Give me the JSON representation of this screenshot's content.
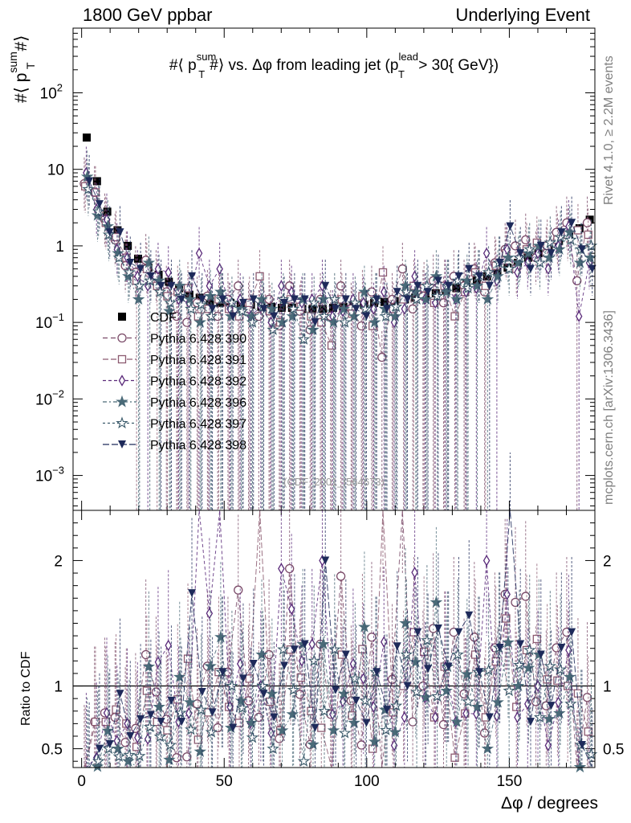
{
  "header": {
    "left": "1800 GeV ppbar",
    "right": "Underlying Event"
  },
  "side_labels": {
    "rivet": "Rivet 4.1.0, ≥ 2.2M events",
    "mcplots": "mcplots.cern.ch [arXiv:1306.3436]"
  },
  "chart_data": {
    "type": "scatter",
    "title": "#⟨ p_T^sum #⟩ vs. Δφ from leading jet  (p_T^lead > 30{ GeV})",
    "title_parts": {
      "prefix": "#⟨ p",
      "sup1": "sum",
      "sub1": "T",
      "mid": "#⟩ vs. Δφ from leading jet  (p",
      "sup2": "lead",
      "sub2": "T",
      "suffix": " > 30{ GeV})"
    },
    "ylabel": {
      "prefix": "#⟨ p",
      "sup": "sum",
      "sub": "T",
      "suffix": "#⟩"
    },
    "xlabel": "Δφ / degrees",
    "ratio_ylabel": "Ratio to CDF",
    "watermark": "(CDF_2001_I564673)",
    "xlim": [
      -3,
      180
    ],
    "ylim": [
      0.00035,
      700
    ],
    "yscale": "log",
    "ratio_ylim": [
      0.35,
      2.4
    ],
    "x_ticks": [
      "0",
      "50",
      "100",
      "150"
    ],
    "x_tick_values": [
      0,
      50,
      100,
      150
    ],
    "y_tick_labels": [
      {
        "value": 100,
        "base": "10",
        "exp": "2"
      },
      {
        "value": 10,
        "base": "10",
        "exp": ""
      },
      {
        "value": 1,
        "base": "1",
        "exp": ""
      },
      {
        "value": 0.1,
        "base": "10",
        "exp": "−1"
      },
      {
        "value": 0.01,
        "base": "10",
        "exp": "−2"
      },
      {
        "value": 0.001,
        "base": "10",
        "exp": "−3"
      }
    ],
    "ratio_ticks": [
      "2",
      "1",
      "0.5"
    ],
    "ratio_tick_values": [
      2,
      1,
      0.5
    ],
    "x": [
      1.8,
      5.4,
      9.0,
      12.6,
      16.2,
      19.8,
      23.4,
      27.0,
      30.6,
      34.2,
      37.8,
      41.4,
      45.0,
      48.6,
      52.2,
      55.8,
      59.4,
      63.0,
      66.6,
      70.2,
      73.8,
      77.4,
      81.0,
      84.6,
      88.2,
      91.8,
      95.4,
      99.0,
      102.6,
      106.2,
      109.8,
      113.4,
      117.0,
      120.6,
      124.2,
      127.8,
      131.4,
      135.0,
      138.6,
      142.2,
      145.8,
      149.4,
      153.0,
      156.6,
      160.2,
      163.8,
      167.4,
      171.0,
      174.6,
      178.2
    ],
    "series": [
      {
        "name": "CDF",
        "marker": "square-filled",
        "color": "#000000",
        "values": [
          26,
          7.0,
          2.8,
          1.6,
          1.0,
          0.68,
          0.52,
          0.42,
          0.34,
          0.28,
          0.23,
          0.21,
          0.19,
          0.18,
          0.18,
          0.17,
          0.17,
          0.16,
          0.16,
          0.155,
          0.155,
          0.15,
          0.15,
          0.15,
          0.155,
          0.16,
          0.17,
          0.17,
          0.18,
          0.185,
          0.19,
          0.2,
          0.21,
          0.22,
          0.24,
          0.26,
          0.28,
          0.32,
          0.36,
          0.4,
          0.46,
          0.52,
          0.6,
          0.7,
          0.8,
          0.95,
          1.15,
          1.4,
          1.7,
          2.2
        ]
      },
      {
        "name": "Pythia 6.428 390",
        "marker": "circle-open",
        "color": "#7a4a68",
        "values": [
          6.5,
          5.0,
          2.2,
          1.2,
          0.55,
          0.45,
          0.65,
          0.4,
          0.25,
          0.12,
          0.1,
          0.18,
          0.22,
          0.12,
          0.2,
          0.3,
          0.15,
          0.12,
          0.2,
          0.09,
          0.3,
          0.14,
          0.08,
          0.2,
          0.12,
          0.3,
          0.15,
          0.09,
          0.25,
          0.035,
          0.2,
          0.5,
          0.15,
          0.22,
          0.35,
          0.18,
          0.4,
          0.3,
          0.5,
          0.25,
          0.6,
          0.9,
          1.0,
          1.2,
          0.7,
          0.8,
          1.5,
          2.0,
          0.35,
          2.0
        ]
      },
      {
        "name": "Pythia 6.428 391",
        "marker": "square-open",
        "color": "#8c5a70",
        "values": [
          6.0,
          5.0,
          2.0,
          1.3,
          0.7,
          0.35,
          0.5,
          0.3,
          0.22,
          0.25,
          0.28,
          0.12,
          0.15,
          0.2,
          0.15,
          0.12,
          0.18,
          0.4,
          0.14,
          0.1,
          0.2,
          0.16,
          0.12,
          0.1,
          0.05,
          0.2,
          0.13,
          0.22,
          0.09,
          0.45,
          0.15,
          0.2,
          0.3,
          0.28,
          0.18,
          0.3,
          0.12,
          0.25,
          0.45,
          0.3,
          0.55,
          0.8,
          0.5,
          0.9,
          1.1,
          1.0,
          1.2,
          1.4,
          1.6,
          1.4
        ]
      },
      {
        "name": "Pythia 6.428 392",
        "marker": "diamond-open",
        "color": "#5a2a7a",
        "values": [
          9.0,
          3.0,
          2.2,
          0.9,
          0.7,
          0.4,
          0.3,
          0.5,
          0.45,
          0.2,
          0.18,
          0.8,
          0.3,
          0.5,
          0.15,
          0.2,
          0.12,
          0.16,
          0.1,
          0.3,
          0.25,
          0.18,
          0.2,
          0.3,
          0.12,
          0.14,
          0.2,
          0.18,
          0.15,
          0.25,
          0.1,
          0.15,
          0.4,
          0.2,
          0.18,
          0.3,
          0.2,
          0.25,
          0.28,
          0.8,
          0.35,
          0.9,
          0.45,
          0.6,
          0.8,
          0.5,
          1.0,
          1.8,
          0.12,
          0.6
        ]
      },
      {
        "name": "Pythia 6.428 396",
        "marker": "star-filled",
        "color": "#4a6a78",
        "values": [
          8.0,
          2.5,
          1.8,
          0.8,
          0.4,
          0.2,
          0.6,
          0.35,
          0.14,
          0.3,
          0.2,
          0.1,
          0.22,
          0.25,
          0.12,
          0.15,
          0.12,
          0.2,
          0.15,
          0.1,
          0.12,
          0.2,
          0.08,
          0.2,
          0.1,
          0.15,
          0.12,
          0.25,
          0.1,
          0.15,
          0.12,
          0.3,
          0.25,
          0.2,
          0.4,
          0.25,
          0.2,
          0.35,
          0.3,
          0.2,
          0.4,
          0.7,
          0.6,
          0.8,
          1.0,
          0.7,
          0.9,
          1.5,
          0.6,
          0.7
        ]
      },
      {
        "name": "Pythia 6.428 397",
        "marker": "star-open",
        "color": "#3a5a6a",
        "values": [
          5.5,
          2.8,
          1.4,
          0.7,
          0.45,
          0.3,
          0.35,
          0.25,
          0.18,
          0.22,
          0.15,
          0.17,
          0.12,
          0.2,
          0.18,
          0.14,
          0.1,
          0.16,
          0.08,
          0.2,
          0.15,
          0.06,
          0.18,
          0.12,
          0.2,
          0.1,
          0.18,
          0.15,
          0.2,
          0.12,
          0.16,
          0.25,
          0.2,
          0.3,
          0.22,
          0.3,
          0.35,
          0.28,
          0.4,
          0.45,
          0.6,
          0.5,
          0.7,
          0.9,
          0.6,
          1.1,
          1.3,
          1.2,
          0.9,
          1.0
        ]
      },
      {
        "name": "Pythia 6.428 398",
        "marker": "triangle-down-filled",
        "color": "#1e2a5a",
        "values": [
          7.0,
          3.5,
          1.5,
          1.5,
          0.6,
          0.5,
          0.4,
          0.3,
          0.3,
          0.2,
          0.4,
          0.2,
          0.15,
          0.2,
          0.12,
          0.18,
          0.2,
          0.15,
          0.12,
          0.18,
          0.2,
          0.2,
          0.1,
          0.3,
          0.15,
          0.2,
          0.15,
          0.12,
          0.2,
          0.15,
          0.25,
          0.2,
          0.3,
          0.25,
          0.35,
          0.3,
          0.4,
          0.5,
          0.4,
          0.3,
          0.6,
          1.8,
          0.8,
          0.5,
          1.0,
          0.8,
          1.5,
          2.0,
          0.9,
          0.5
        ]
      }
    ]
  }
}
